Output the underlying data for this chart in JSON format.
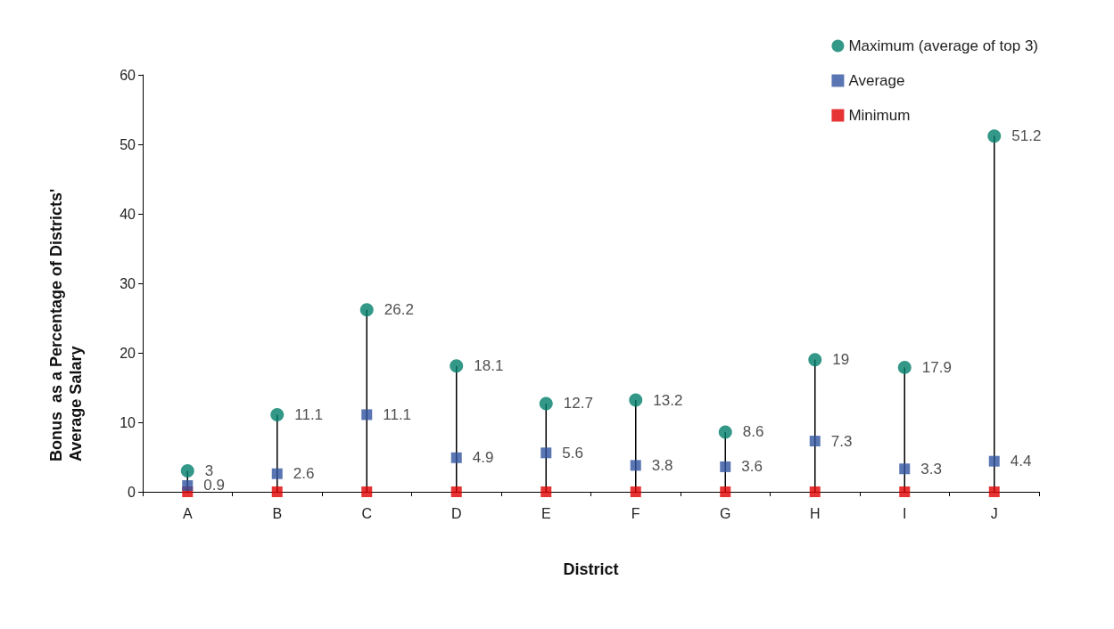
{
  "chart_data": {
    "type": "scatter",
    "xlabel": "District",
    "ylabel": "Bonus  as a Percentage of Districts' Average Salary",
    "categories": [
      "A",
      "B",
      "C",
      "D",
      "E",
      "F",
      "G",
      "H",
      "I",
      "J"
    ],
    "series": [
      {
        "name": "Maximum (average of top 3)",
        "type": "lollipop",
        "marker": "circle",
        "color": "#007e6a",
        "values": [
          3,
          11.1,
          26.2,
          18.1,
          12.7,
          13.2,
          8.6,
          19,
          17.9,
          51.2
        ],
        "value_labels": [
          "3",
          "11.1",
          "26.2",
          "18.1",
          "12.7",
          "13.2",
          "8.6",
          "19",
          "17.9",
          "51.2"
        ]
      },
      {
        "name": "Average",
        "type": "scatter",
        "marker": "square",
        "color": "#2f54a0",
        "values": [
          0.9,
          2.6,
          11.1,
          4.9,
          5.6,
          3.8,
          3.6,
          7.3,
          3.3,
          4.4
        ],
        "value_labels": [
          "0.9",
          "2.6",
          "11.1",
          "4.9",
          "5.6",
          "3.8",
          "3.6",
          "7.3",
          "3.3",
          "4.4"
        ]
      },
      {
        "name": "Minimum",
        "marker": "square",
        "color": "#e00000",
        "values": [
          0,
          0,
          0,
          0,
          0,
          0,
          0,
          0,
          0,
          0
        ]
      }
    ],
    "ylim": [
      0,
      60
    ],
    "yticks": [
      0,
      10,
      20,
      30,
      40,
      50,
      60
    ],
    "grid": false,
    "legend": "top right"
  }
}
